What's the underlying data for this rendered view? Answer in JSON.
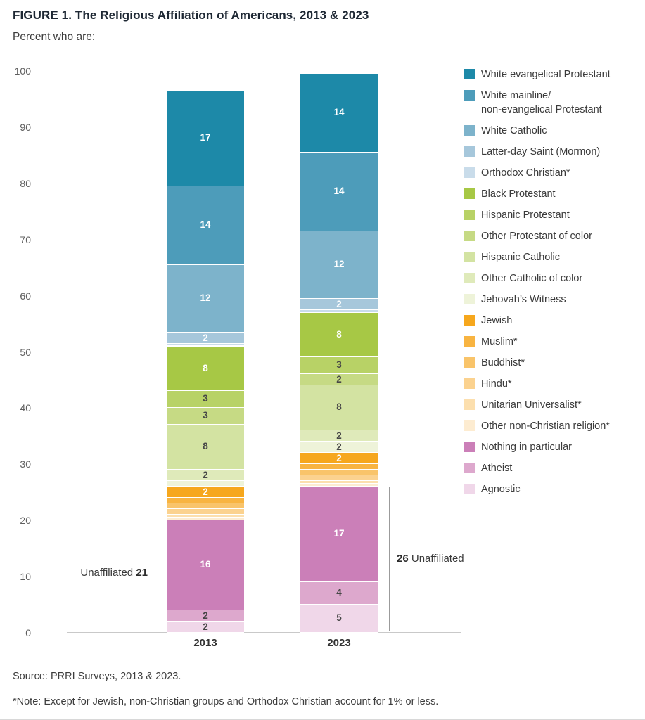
{
  "title": "FIGURE 1.  The Religious Affiliation of Americans, 2013 & 2023",
  "subtitle": "Percent who are:",
  "source": "Source: PRRI Surveys, 2013 & 2023.",
  "note": "*Note: Except for Jewish, non-Christian groups and Orthodox Christian account for 1% or less.",
  "chart_data": {
    "type": "bar",
    "stacked": true,
    "title": "FIGURE 1.  The Religious Affiliation of Americans, 2013 & 2023",
    "subtitle": "Percent who are:",
    "categories": [
      "2013",
      "2023"
    ],
    "ylim": [
      0,
      100
    ],
    "ytick_step": 10,
    "grid": false,
    "legend_position": "right",
    "label_min_value": 2,
    "series": [
      {
        "name": "White evangelical Protestant",
        "color": "#1d89a8",
        "label_color": "#ffffff",
        "values": [
          17,
          14
        ]
      },
      {
        "name": "White mainline/\nnon-evangelical Protestant",
        "color": "#4d9cba",
        "label_color": "#ffffff",
        "values": [
          14,
          14
        ]
      },
      {
        "name": "White Catholic",
        "color": "#7db3cb",
        "label_color": "#ffffff",
        "values": [
          12,
          12
        ]
      },
      {
        "name": "Latter-day Saint (Mormon)",
        "color": "#a6c7db",
        "label_color": "#ffffff",
        "values": [
          2,
          2
        ]
      },
      {
        "name": "Orthodox Christian*",
        "color": "#c9dcea",
        "label_color": "#ffffff",
        "values": [
          0.5,
          0.5
        ]
      },
      {
        "name": "Black Protestant",
        "color": "#a7c845",
        "label_color": "#ffffff",
        "values": [
          8,
          8
        ]
      },
      {
        "name": "Hispanic Protestant",
        "color": "#b8d266",
        "label_color": "#474747",
        "values": [
          3,
          3
        ]
      },
      {
        "name": "Other Protestant of color",
        "color": "#c6da84",
        "label_color": "#474747",
        "values": [
          3,
          2
        ]
      },
      {
        "name": "Hispanic Catholic",
        "color": "#d3e3a2",
        "label_color": "#474747",
        "values": [
          8,
          8
        ]
      },
      {
        "name": "Other Catholic of color",
        "color": "#dfeaba",
        "label_color": "#474747",
        "values": [
          2,
          2
        ]
      },
      {
        "name": "Jehovah’s Witness",
        "color": "#eef3d9",
        "label_color": "#474747",
        "values": [
          1,
          2
        ]
      },
      {
        "name": "Jewish",
        "color": "#f6a71d",
        "label_color": "#ffffff",
        "values": [
          2,
          2
        ]
      },
      {
        "name": "Muslim*",
        "color": "#f8b441",
        "label_color": "#ffffff",
        "values": [
          1,
          1
        ]
      },
      {
        "name": "Buddhist*",
        "color": "#f9c46a",
        "label_color": "#ffffff",
        "values": [
          1,
          1
        ]
      },
      {
        "name": "Hindu*",
        "color": "#fbd28f",
        "label_color": "#ffffff",
        "values": [
          1,
          1
        ]
      },
      {
        "name": "Unitarian Universalist*",
        "color": "#fcdfae",
        "label_color": "#474747",
        "values": [
          0.5,
          0.5
        ]
      },
      {
        "name": "Other non-Christian religion*",
        "color": "#fdecd1",
        "label_color": "#474747",
        "values": [
          0.5,
          0.5
        ]
      },
      {
        "name": "Nothing in particular",
        "color": "#cb7fb8",
        "label_color": "#ffffff",
        "values": [
          16,
          17
        ]
      },
      {
        "name": "Atheist",
        "color": "#dda8cd",
        "label_color": "#474747",
        "values": [
          2,
          4
        ]
      },
      {
        "name": "Agnostic",
        "color": "#f0d7e9",
        "label_color": "#474747",
        "values": [
          2,
          5
        ]
      }
    ],
    "annotations": [
      {
        "category": "2013",
        "side": "left",
        "span": 21,
        "text_before": "Unaffiliated",
        "value": "21"
      },
      {
        "category": "2023",
        "side": "right",
        "span": 26,
        "value": "26",
        "text_after": "Unaffiliated"
      }
    ]
  }
}
